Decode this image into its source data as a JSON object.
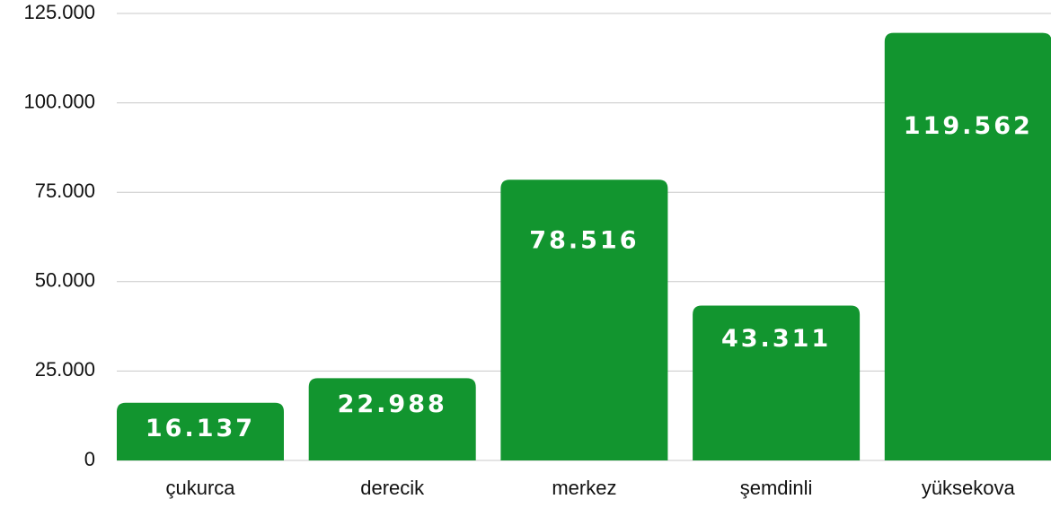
{
  "chart_data": {
    "type": "bar",
    "categories": [
      "çukurca",
      "derecik",
      "merkez",
      "şemdinli",
      "yüksekova"
    ],
    "values": [
      16137,
      22988,
      78516,
      43311,
      119562
    ],
    "value_labels": [
      "16.137",
      "22.988",
      "78.516",
      "43.311",
      "119.562"
    ],
    "color": "#12952f",
    "ylim": [
      0,
      125000
    ],
    "yticks": [
      0,
      {
        "value": 25000,
        "label": "25.000"
      },
      {
        "value": 50000,
        "label": "50.000"
      },
      {
        "value": 75000,
        "label": "75.000"
      },
      {
        "value": 100000,
        "label": "100.000"
      },
      {
        "value": 125000,
        "label": "125.000"
      }
    ],
    "grid": true
  }
}
